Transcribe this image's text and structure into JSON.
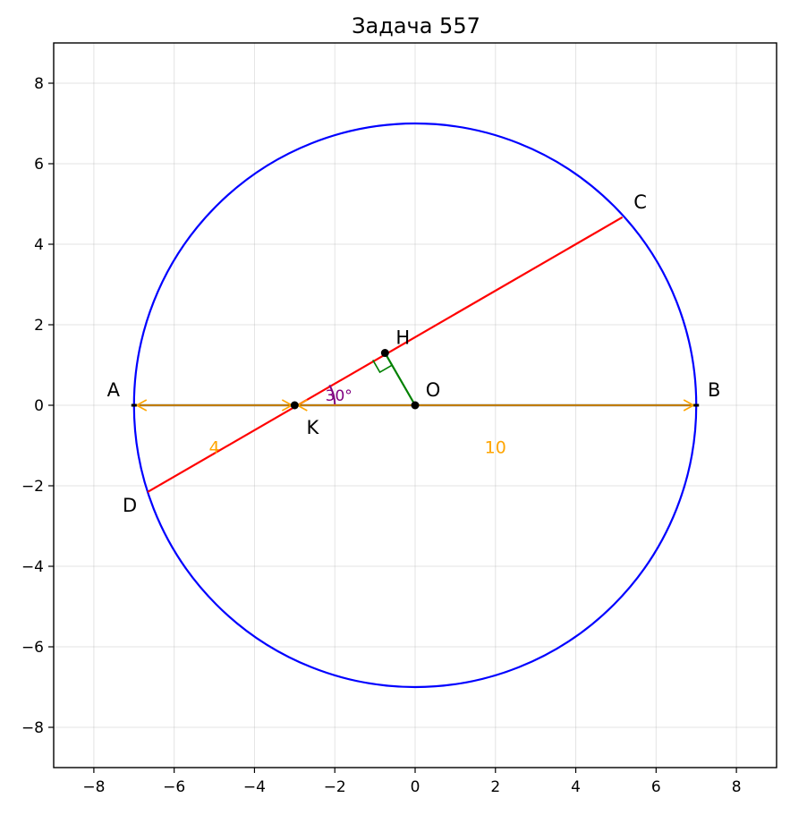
{
  "chart_data": {
    "type": "scatter",
    "title": "Задача 557",
    "xlabel": "",
    "ylabel": "",
    "xlim": [
      -9,
      9
    ],
    "ylim": [
      -9,
      9
    ],
    "xticks": [
      -8,
      -6,
      -4,
      -2,
      0,
      2,
      4,
      6,
      8
    ],
    "yticks": [
      -8,
      -6,
      -4,
      -2,
      0,
      2,
      4,
      6,
      8
    ],
    "xtick_labels": [
      "−8",
      "−6",
      "−4",
      "−2",
      "0",
      "2",
      "4",
      "6",
      "8"
    ],
    "ytick_labels": [
      "−8",
      "−6",
      "−4",
      "−2",
      "0",
      "2",
      "4",
      "6",
      "8"
    ],
    "grid": true,
    "circle": {
      "center": [
        0,
        0
      ],
      "radius": 7,
      "color": "#0000ff"
    },
    "segments": [
      {
        "name": "chord-CD",
        "from": [
          -6.6603,
          -2.1547
        ],
        "to": [
          5.1603,
          4.6699
        ],
        "color": "#ff0000"
      },
      {
        "name": "perpendicular-OH",
        "from": [
          0,
          0
        ],
        "to": [
          -0.75,
          1.299
        ],
        "color": "#008000"
      },
      {
        "name": "diameter-AB",
        "from": [
          -7,
          0
        ],
        "to": [
          7,
          0
        ],
        "color": "#000000"
      }
    ],
    "points": [
      {
        "name": "K",
        "x": -3,
        "y": 0,
        "label": "K"
      },
      {
        "name": "O",
        "x": 0,
        "y": 0,
        "label": "O"
      },
      {
        "name": "H",
        "x": -0.75,
        "y": 1.299,
        "label": "H"
      }
    ],
    "endpoint_labels": [
      {
        "name": "A",
        "x": -7,
        "y": 0,
        "label": "A"
      },
      {
        "name": "B",
        "x": 7,
        "y": 0,
        "label": "B"
      },
      {
        "name": "C",
        "x": 5.1603,
        "y": 4.6699,
        "label": "C"
      },
      {
        "name": "D",
        "x": -6.6603,
        "y": -2.1547,
        "label": "D"
      }
    ],
    "dimensions": [
      {
        "name": "AK",
        "from": [
          -7,
          0
        ],
        "to": [
          -3,
          0
        ],
        "label": "4",
        "label_at": [
          -5,
          -1.05
        ],
        "color": "#ffa500"
      },
      {
        "name": "KB",
        "from": [
          -3,
          0
        ],
        "to": [
          7,
          0
        ],
        "label": "10",
        "label_at": [
          2,
          -1.05
        ],
        "color": "#ffa500"
      }
    ],
    "angle_mark": {
      "vertex": [
        -3,
        0
      ],
      "from_deg": 0,
      "to_deg": 30,
      "radius": 1,
      "label": "30°",
      "color": "#800080"
    },
    "right_angle_mark": {
      "vertex": [
        -0.75,
        1.299
      ],
      "size": 0.35,
      "color": "#008000"
    }
  }
}
